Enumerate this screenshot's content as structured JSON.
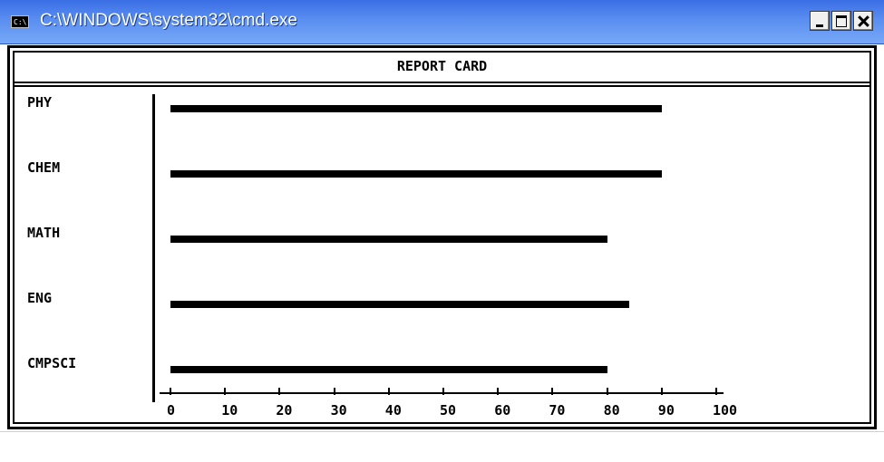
{
  "window": {
    "title": "C:\\WINDOWS\\system32\\cmd.exe",
    "icon": "cmd-icon",
    "icon_text": "C:\\"
  },
  "report": {
    "title": "REPORT CARD"
  },
  "chart_data": {
    "type": "bar",
    "orientation": "horizontal",
    "title": "REPORT CARD",
    "categories": [
      "PHY",
      "CHEM",
      "MATH",
      "ENG",
      "CMPSCI"
    ],
    "values": [
      90,
      90,
      80,
      84,
      80
    ],
    "xlim": [
      0,
      100
    ],
    "xticks": [
      "0",
      "10",
      "20",
      "30",
      "40",
      "50",
      "60",
      "70",
      "80",
      "90",
      "100"
    ],
    "grid": false,
    "bar_color": "#000000"
  }
}
